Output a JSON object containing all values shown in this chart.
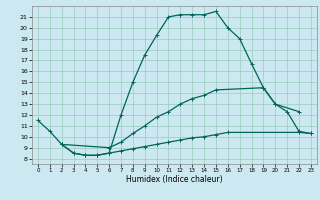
{
  "xlabel": "Humidex (Indice chaleur)",
  "bg_color": "#cce8f0",
  "grid_color": "#99ccbb",
  "line_color": "#006655",
  "xlim": [
    -0.5,
    23.5
  ],
  "ylim": [
    7.5,
    22
  ],
  "xticks": [
    0,
    1,
    2,
    3,
    4,
    5,
    6,
    7,
    8,
    9,
    10,
    11,
    12,
    13,
    14,
    15,
    16,
    17,
    18,
    19,
    20,
    21,
    22,
    23
  ],
  "yticks": [
    8,
    9,
    10,
    11,
    12,
    13,
    14,
    15,
    16,
    17,
    18,
    19,
    20,
    21
  ],
  "line1_x": [
    0,
    1,
    2,
    3,
    4,
    5,
    6,
    7,
    8,
    9,
    10,
    11,
    12,
    13,
    14,
    15,
    16,
    17,
    18,
    19,
    20,
    22
  ],
  "line1_y": [
    11.5,
    10.5,
    9.3,
    8.5,
    8.3,
    8.3,
    8.5,
    12.0,
    15.0,
    17.5,
    19.3,
    21.0,
    21.2,
    21.2,
    21.2,
    21.5,
    20.0,
    19.0,
    16.7,
    14.5,
    13.0,
    12.3
  ],
  "line2_x": [
    2,
    6,
    7,
    8,
    9,
    10,
    11,
    12,
    13,
    14,
    15,
    19,
    20,
    21,
    22,
    23
  ],
  "line2_y": [
    9.3,
    9.0,
    9.5,
    10.3,
    11.0,
    11.8,
    12.3,
    13.0,
    13.5,
    13.8,
    14.3,
    14.5,
    13.0,
    12.3,
    10.5,
    10.3
  ],
  "line3_x": [
    2,
    3,
    4,
    5,
    6,
    7,
    8,
    9,
    10,
    11,
    12,
    13,
    14,
    15,
    16,
    22,
    23
  ],
  "line3_y": [
    9.3,
    8.5,
    8.3,
    8.3,
    8.5,
    8.7,
    8.9,
    9.1,
    9.3,
    9.5,
    9.7,
    9.9,
    10.0,
    10.2,
    10.4,
    10.4,
    10.3
  ]
}
